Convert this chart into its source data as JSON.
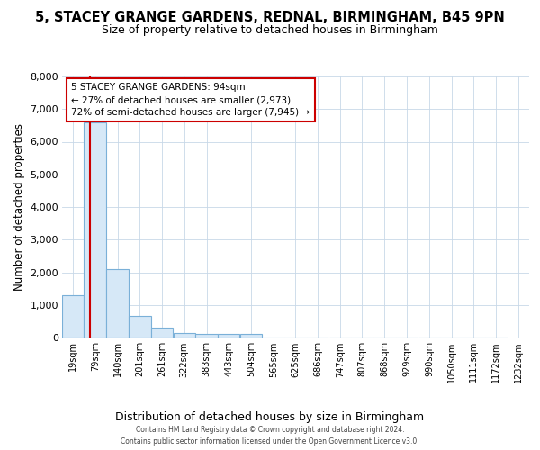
{
  "title": "5, STACEY GRANGE GARDENS, REDNAL, BIRMINGHAM, B45 9PN",
  "subtitle": "Size of property relative to detached houses in Birmingham",
  "xlabel": "Distribution of detached houses by size in Birmingham",
  "ylabel": "Number of detached properties",
  "footer1": "Contains HM Land Registry data © Crown copyright and database right 2024.",
  "footer2": "Contains public sector information licensed under the Open Government Licence v3.0.",
  "bar_color": "#d6e8f7",
  "bar_edge_color": "#7ab0d8",
  "property_line_color": "#cc0000",
  "property_size": 94,
  "annotation_line1": "5 STACEY GRANGE GARDENS: 94sqm",
  "annotation_line2": "← 27% of detached houses are smaller (2,973)",
  "annotation_line3": "72% of semi-detached houses are larger (7,945) →",
  "bin_edges": [
    19,
    79,
    140,
    201,
    261,
    322,
    383,
    443,
    504,
    565,
    625,
    686,
    747,
    807,
    868,
    929,
    990,
    1050,
    1111,
    1172,
    1232
  ],
  "bar_heights": [
    1300,
    6600,
    2100,
    650,
    300,
    150,
    100,
    100,
    100,
    0,
    0,
    0,
    0,
    0,
    0,
    0,
    0,
    0,
    0,
    0
  ],
  "ylim": [
    0,
    8000
  ],
  "yticks": [
    0,
    1000,
    2000,
    3000,
    4000,
    5000,
    6000,
    7000,
    8000
  ],
  "background_color": "#ffffff",
  "grid_color": "#c8d8e8",
  "title_fontsize": 10.5,
  "subtitle_fontsize": 9,
  "ylabel_fontsize": 8.5,
  "xlabel_fontsize": 9,
  "ytick_fontsize": 8,
  "xtick_fontsize": 7
}
